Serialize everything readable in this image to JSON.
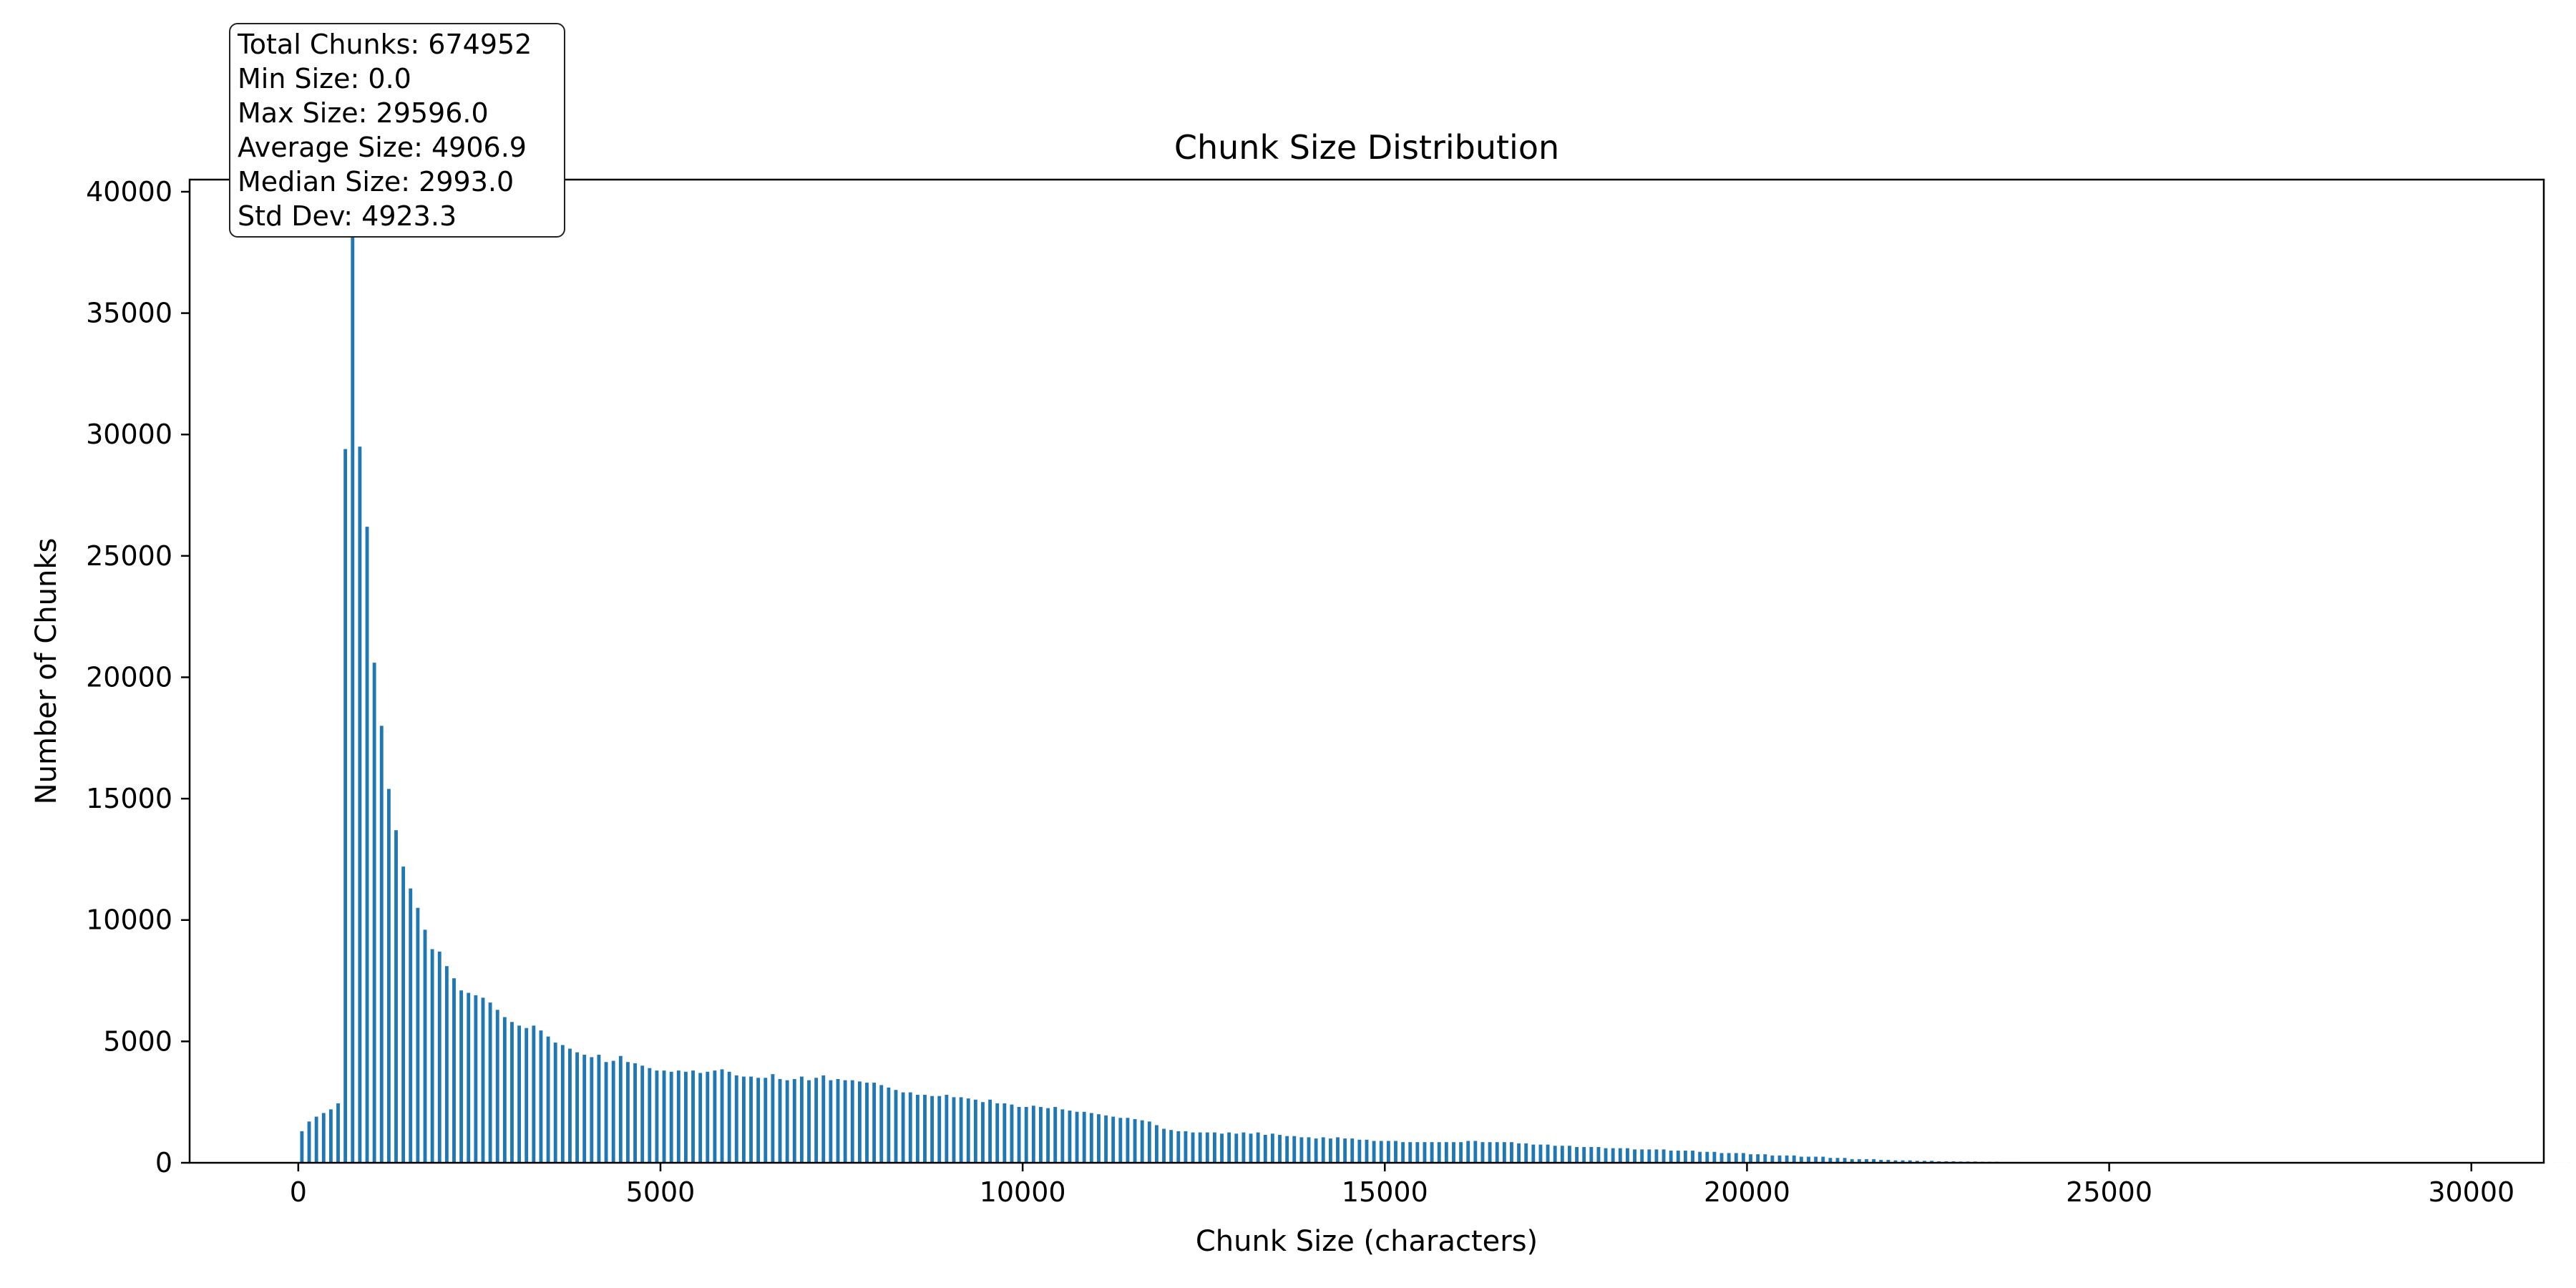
{
  "chart_data": {
    "type": "bar",
    "title": "Chunk Size Distribution",
    "xlabel": "Chunk Size (characters)",
    "ylabel": "Number of Chunks",
    "xlim": [
      -1500,
      31000
    ],
    "ylim": [
      0,
      40500
    ],
    "xticks": [
      0,
      5000,
      10000,
      15000,
      20000,
      25000,
      30000
    ],
    "yticks": [
      0,
      5000,
      10000,
      15000,
      20000,
      25000,
      30000,
      35000,
      40000
    ],
    "bar_color": "#1f77b4",
    "bin_start": 0,
    "bin_width": 100,
    "values": [
      1300,
      1700,
      1900,
      2050,
      2200,
      2450,
      29400,
      39500,
      29500,
      26200,
      20600,
      18000,
      15400,
      13700,
      12200,
      11300,
      10500,
      9600,
      8800,
      8700,
      8100,
      7600,
      7100,
      7000,
      6900,
      6800,
      6600,
      6300,
      6000,
      5800,
      5650,
      5550,
      5650,
      5450,
      5200,
      4950,
      4850,
      4700,
      4550,
      4450,
      4350,
      4450,
      4150,
      4200,
      4400,
      4150,
      4100,
      4000,
      3900,
      3800,
      3800,
      3750,
      3800,
      3750,
      3800,
      3700,
      3750,
      3800,
      3850,
      3750,
      3600,
      3550,
      3550,
      3500,
      3500,
      3650,
      3450,
      3400,
      3450,
      3550,
      3400,
      3500,
      3600,
      3400,
      3450,
      3400,
      3400,
      3350,
      3300,
      3300,
      3200,
      3100,
      3000,
      2900,
      2900,
      2800,
      2800,
      2750,
      2750,
      2800,
      2700,
      2700,
      2650,
      2600,
      2500,
      2600,
      2450,
      2450,
      2400,
      2300,
      2300,
      2350,
      2300,
      2250,
      2300,
      2200,
      2150,
      2100,
      2100,
      2050,
      2000,
      1950,
      1900,
      1850,
      1850,
      1800,
      1750,
      1700,
      1550,
      1400,
      1350,
      1300,
      1300,
      1250,
      1250,
      1250,
      1250,
      1200,
      1250,
      1200,
      1250,
      1200,
      1250,
      1150,
      1200,
      1150,
      1100,
      1100,
      1050,
      1050,
      1000,
      1050,
      1000,
      1050,
      1000,
      1000,
      950,
      950,
      900,
      900,
      900,
      900,
      850,
      850,
      850,
      850,
      850,
      850,
      850,
      850,
      850,
      900,
      900,
      850,
      850,
      850,
      850,
      850,
      800,
      800,
      750,
      750,
      750,
      700,
      700,
      700,
      650,
      650,
      650,
      650,
      600,
      600,
      600,
      600,
      550,
      550,
      550,
      550,
      550,
      500,
      500,
      500,
      500,
      450,
      450,
      450,
      400,
      400,
      400,
      400,
      350,
      350,
      350,
      300,
      300,
      300,
      300,
      250,
      250,
      250,
      250,
      200,
      200,
      200,
      150,
      150,
      150,
      150,
      120,
      120,
      100,
      100,
      100,
      80,
      80,
      80,
      60,
      60,
      60,
      50,
      50,
      50,
      40,
      40,
      40,
      30,
      30,
      30,
      25,
      25,
      20,
      20,
      20,
      15,
      15,
      15,
      10,
      10,
      10,
      10,
      8,
      8,
      8,
      6,
      6,
      6,
      5,
      5,
      5,
      4,
      4,
      4,
      3,
      3,
      3,
      3,
      2,
      2,
      2,
      2,
      2,
      1,
      1,
      1,
      1,
      1,
      1,
      1,
      1,
      1,
      1,
      1,
      1,
      1,
      1,
      1,
      1,
      1,
      1,
      1,
      1,
      1,
      1,
      1,
      1,
      1,
      1,
      1,
      1,
      1,
      1,
      1,
      1,
      1,
      1,
      1,
      1,
      1,
      1,
      1,
      1,
      1,
      1,
      1,
      1,
      1,
      1,
      1,
      1,
      1,
      1,
      1,
      1,
      1,
      1,
      1,
      1,
      1,
      1,
      1,
      1,
      1,
      1,
      1,
      1,
      1,
      1,
      1,
      1,
      1,
      1,
      1
    ],
    "stats": [
      "Total Chunks: 674952",
      "Min Size: 0.0",
      "Max Size: 29596.0",
      "Average Size: 4906.9",
      "Median Size: 2993.0",
      "Std Dev: 4923.3"
    ]
  }
}
